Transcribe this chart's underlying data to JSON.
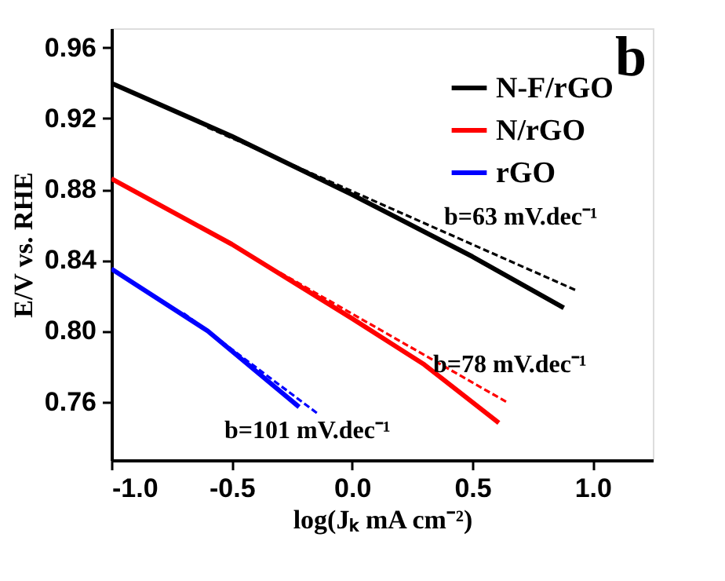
{
  "chart_data": {
    "type": "line",
    "xlabel": "log(Jₖ mA cm⁻²)",
    "ylabel": "E/V vs. RHE",
    "xlim": [
      -1.0,
      1.25
    ],
    "ylim": [
      0.727,
      0.971
    ],
    "xticks": [
      {
        "value": -1,
        "label": "-1.0"
      },
      {
        "value": -0.5,
        "label": "-0.5"
      },
      {
        "value": 0,
        "label": "0.0"
      },
      {
        "value": 0.5,
        "label": "0.5"
      },
      {
        "value": 1,
        "label": "1.0"
      }
    ],
    "yticks": [
      0.76,
      {
        "value": 0.8,
        "label": "0.80"
      },
      0.84,
      0.88,
      0.92,
      0.96
    ],
    "grid": false,
    "legend": "top right",
    "marker": "none",
    "series": [
      {
        "name": "N-F/rGO",
        "color": "#000000",
        "line_style": "solid",
        "x": [
          -1,
          -0.5,
          0,
          0.5,
          0.88
        ],
        "values": [
          0.94,
          0.91,
          0.877,
          0.842,
          0.813
        ]
      },
      {
        "name": "N/rGO",
        "color": "#ff0000",
        "line_style": "solid",
        "x": [
          -1,
          -0.5,
          0,
          0.3,
          0.61
        ],
        "values": [
          0.886,
          0.849,
          0.807,
          0.781,
          0.748
        ]
      },
      {
        "name": "rGO",
        "color": "#0000ff",
        "line_style": "solid",
        "x": [
          -1,
          -0.6,
          -0.22
        ],
        "values": [
          0.835,
          0.8,
          0.757
        ]
      },
      {
        "color": "#000000",
        "line_style": "dashed",
        "x": [
          -0.6,
          0.93
        ],
        "values": [
          0.915,
          0.823
        ]
      },
      {
        "color": "#ff0000",
        "line_style": "dashed",
        "x": [
          -0.3,
          0.64
        ],
        "values": [
          0.833,
          0.76
        ]
      },
      {
        "color": "#0000ff",
        "line_style": "dashed",
        "x": [
          -0.7,
          -0.14
        ],
        "values": [
          0.81,
          0.753
        ]
      }
    ],
    "annotations": [
      "b",
      "b=63 mV.dec⁻¹",
      "b=78 mV.dec⁻¹",
      "b=101 mV.dec⁻¹"
    ]
  }
}
